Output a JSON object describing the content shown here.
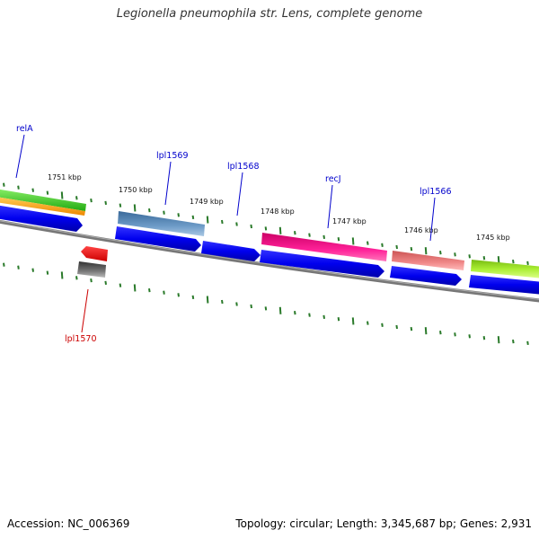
{
  "title": "Legionella pneumophila str. Lens, complete genome",
  "footer": {
    "accession": "Accession: NC_006369",
    "summary": "Topology: circular; Length: 3,345,687 bp; Genes: 2,931"
  },
  "ruler": [
    {
      "label": "1751 kbp",
      "pos": 1751
    },
    {
      "label": "1750 kbp",
      "pos": 1750
    },
    {
      "label": "1749 kbp",
      "pos": 1749
    },
    {
      "label": "1748 kbp",
      "pos": 1748
    },
    {
      "label": "1747 kbp",
      "pos": 1747
    },
    {
      "label": "1746 kbp",
      "pos": 1746
    },
    {
      "label": "1745 kbp",
      "pos": 1745
    }
  ],
  "genes": [
    {
      "name": "relA",
      "color": "#0000cc"
    },
    {
      "name": "lpl1569",
      "color": "#0000cc"
    },
    {
      "name": "lpl1568",
      "color": "#0000cc"
    },
    {
      "name": "recJ",
      "color": "#0000cc"
    },
    {
      "name": "lpl1566",
      "color": "#0000cc"
    },
    {
      "name": "lpl1570",
      "color": "#cc0000"
    }
  ],
  "colors": {
    "backbone": "#777777",
    "cds": "#0000ee",
    "ticks": "#2a7a2a",
    "feature_green": "#44cc33",
    "feature_orange": "#f5a020",
    "feature_steel": "#4f82b5",
    "feature_magenta": "#ee1188",
    "feature_salmon": "#ee7777",
    "feature_lime": "#99dd22",
    "feature_red": "#ee1111",
    "feature_gray": "#555555"
  }
}
